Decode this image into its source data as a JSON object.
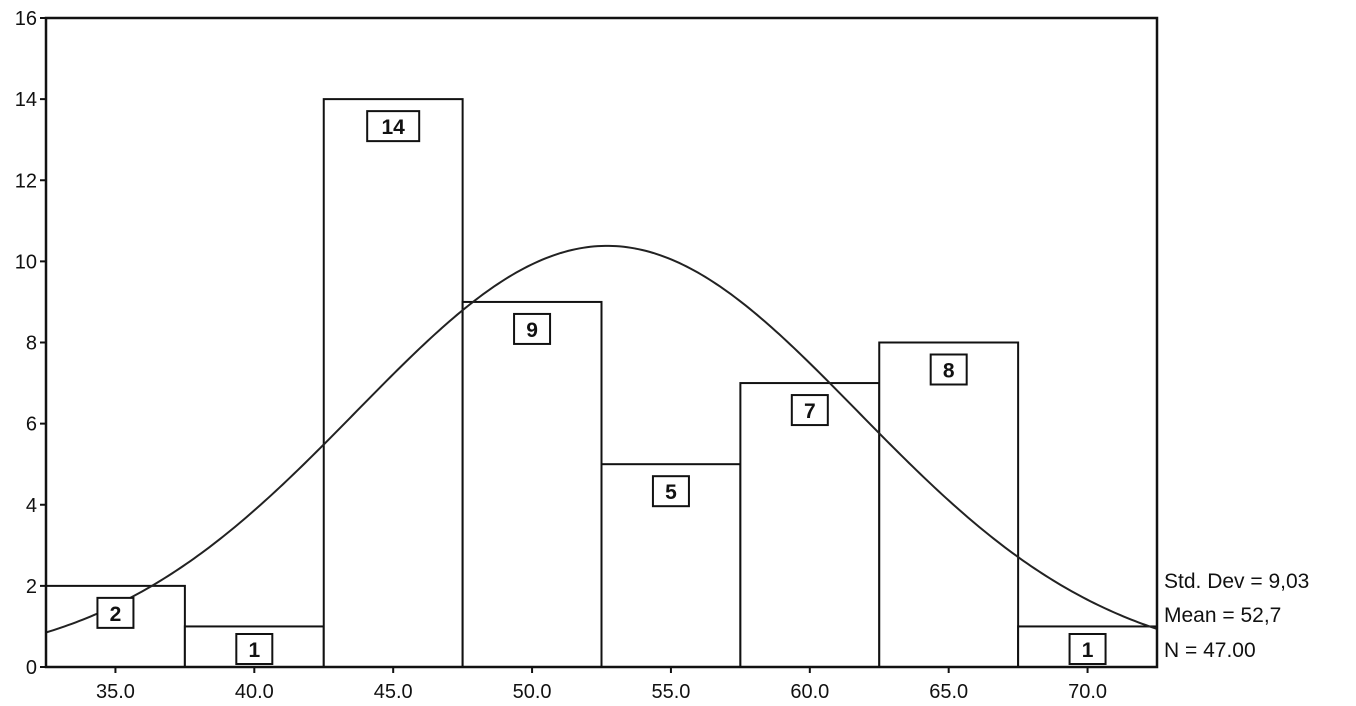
{
  "chart_data": {
    "type": "bar",
    "subtype": "histogram",
    "bin_width": 5,
    "categories": [
      "35.0",
      "40.0",
      "45.0",
      "50.0",
      "55.0",
      "60.0",
      "65.0",
      "70.0"
    ],
    "bin_centers": [
      35,
      40,
      45,
      50,
      55,
      60,
      65,
      70
    ],
    "values": [
      2,
      1,
      14,
      9,
      5,
      7,
      8,
      1
    ],
    "data_labels": [
      "2",
      "1",
      "14",
      "9",
      "5",
      "7",
      "8",
      "1"
    ],
    "xlim": [
      32.5,
      72.5
    ],
    "ylim": [
      0,
      16
    ],
    "yticks": [
      0,
      2,
      4,
      6,
      8,
      10,
      12,
      14,
      16
    ],
    "xticks": [
      35,
      40,
      45,
      50,
      55,
      60,
      65,
      70
    ],
    "normal_curve": {
      "mean": 52.7,
      "std": 9.03,
      "n": 47
    },
    "stats_lines": [
      "Std. Dev = 9,03",
      "Mean = 52,7",
      "N = 47.00"
    ],
    "grid": false,
    "colors": {
      "bar_fill": "#ffffff",
      "stroke": "#111111",
      "curve": "#222222"
    }
  }
}
